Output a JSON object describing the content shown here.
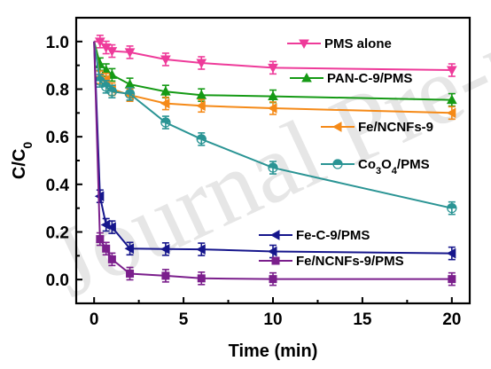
{
  "watermark": "Journal Pre-proof",
  "chart_data": {
    "type": "line",
    "title": "",
    "xlabel": "Time (min)",
    "ylabel": "C/C0",
    "xlim": [
      -1,
      21
    ],
    "ylim": [
      -0.1,
      1.1
    ],
    "xticks": [
      0,
      5,
      10,
      15,
      20
    ],
    "yticks": [
      0.0,
      0.2,
      0.4,
      0.6,
      0.8,
      1.0
    ],
    "legend_position": "right",
    "grid": false,
    "series": [
      {
        "name": "PMS alone",
        "label_parts": [
          "PMS alone"
        ],
        "color": "#ee3b9a",
        "marker": "triangle-down",
        "x": [
          0,
          0.33,
          0.67,
          1,
          2,
          4,
          6,
          10,
          20
        ],
        "y": [
          1.0,
          1.0,
          0.975,
          0.96,
          0.955,
          0.925,
          0.91,
          0.89,
          0.88
        ]
      },
      {
        "name": "PAN-C-9/PMS",
        "label_parts": [
          "PAN-C-9/PMS"
        ],
        "color": "#159a15",
        "marker": "triangle-up",
        "x": [
          0,
          0.33,
          0.67,
          1,
          2,
          4,
          6,
          10,
          20
        ],
        "y": [
          1.0,
          0.905,
          0.88,
          0.86,
          0.82,
          0.79,
          0.775,
          0.77,
          0.755
        ]
      },
      {
        "name": "Fe/NCNFs-9",
        "label_parts": [
          "Fe/NCNFs-9"
        ],
        "color": "#f58a18",
        "marker": "triangle-left",
        "x": [
          0,
          0.33,
          0.67,
          1,
          2,
          4,
          6,
          10,
          20
        ],
        "y": [
          1.0,
          0.85,
          0.84,
          0.8,
          0.775,
          0.74,
          0.73,
          0.72,
          0.7
        ]
      },
      {
        "name": "Co3O4/PMS",
        "label_parts": [
          "Co",
          "3",
          "O",
          "4",
          "/PMS"
        ],
        "color": "#2a9494",
        "marker": "half-circle",
        "x": [
          0,
          0.33,
          0.67,
          1,
          2,
          4,
          6,
          10,
          20
        ],
        "y": [
          1.0,
          0.835,
          0.81,
          0.79,
          0.78,
          0.66,
          0.59,
          0.47,
          0.3
        ]
      },
      {
        "name": "Fe-C-9/PMS",
        "label_parts": [
          "Fe-C-9/PMS"
        ],
        "color": "#16168c",
        "marker": "triangle-left",
        "x": [
          0,
          0.33,
          0.67,
          1,
          2,
          4,
          6,
          10,
          20
        ],
        "y": [
          1.0,
          0.35,
          0.23,
          0.22,
          0.13,
          0.128,
          0.127,
          0.118,
          0.11
        ]
      },
      {
        "name": "Fe/NCNFs-9/PMS",
        "label_parts": [
          "Fe/NCNFs-9/PMS"
        ],
        "color": "#7b1f8c",
        "marker": "square",
        "x": [
          0,
          0.33,
          0.67,
          1,
          2,
          4,
          6,
          10,
          20
        ],
        "y": [
          1.0,
          0.17,
          0.13,
          0.085,
          0.025,
          0.016,
          0.005,
          0.002,
          0.002
        ]
      }
    ]
  }
}
